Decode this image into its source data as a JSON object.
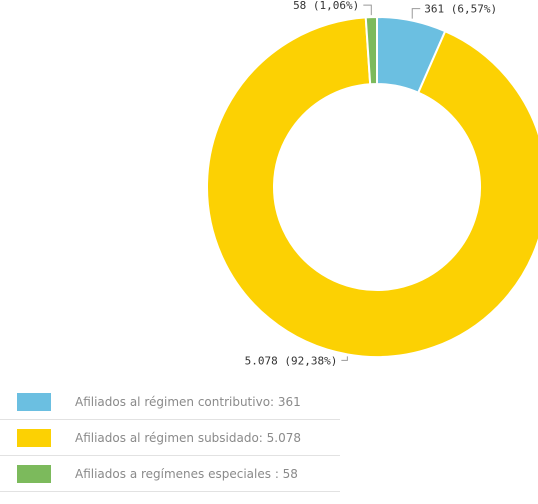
{
  "chart_data": {
    "type": "pie",
    "donut": true,
    "categories": [
      "Afiliados al régimen contributivo",
      "Afiliados al régimen subsidado",
      "Afiliados a regímenes especiales"
    ],
    "values": [
      361,
      5078,
      58
    ],
    "percent_labels": [
      "361 (6,57%)",
      "5.078 (92,38%)",
      "58 (1,06%)"
    ],
    "colors": [
      "#6bbfe1",
      "#fcd103",
      "#7cba5c"
    ],
    "legend_position": "bottom-left"
  },
  "legend": {
    "items": [
      {
        "text": "Afiliados al régimen contributivo:  361",
        "color": "#6bbfe1"
      },
      {
        "text": "Afiliados al régimen subsidado:  5.078",
        "color": "#fcd103"
      },
      {
        "text": "Afiliados a regímenes especiales :  58",
        "color": "#7cba5c"
      }
    ]
  }
}
